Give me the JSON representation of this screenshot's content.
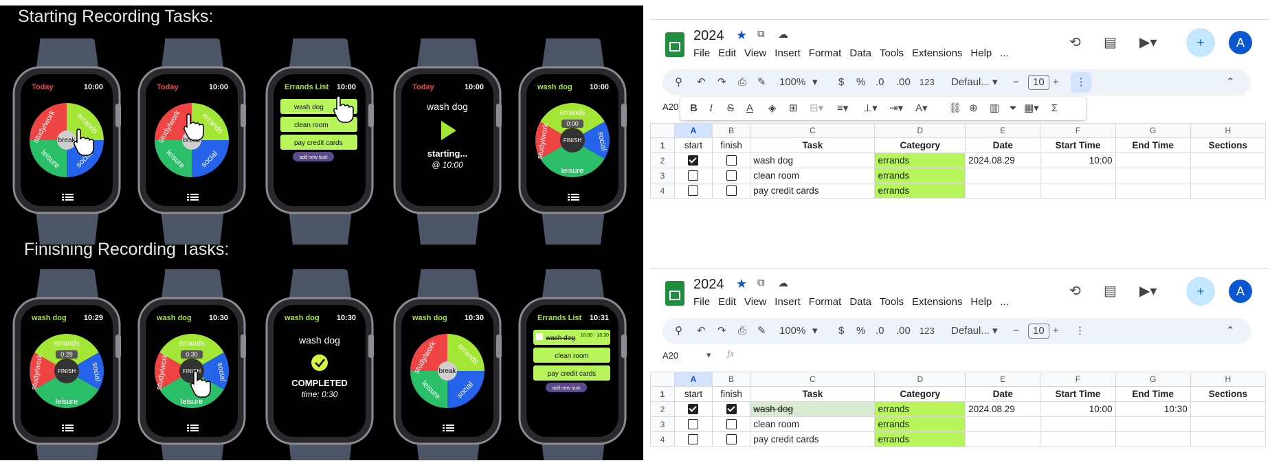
{
  "panel": {
    "start_title": "Starting Recording Tasks:",
    "finish_title": "Finishing Recording Tasks:"
  },
  "watches": {
    "w1": {
      "left": "Today",
      "time": "10:00",
      "center": "break",
      "labels": [
        "study/work",
        "errands",
        "leisure",
        "social"
      ]
    },
    "w2": {
      "left": "Today",
      "time": "10:00",
      "center": "break",
      "labels": [
        "study/work",
        "errands",
        "leisure",
        "social"
      ]
    },
    "w3": {
      "left": "Errands List",
      "time": "10:00",
      "items": [
        "wash dog",
        "clean room",
        "pay credit cards"
      ],
      "add": "add new task"
    },
    "w4": {
      "left": "Today",
      "time": "10:00",
      "task": "wash dog",
      "status": "starting...",
      "at": "@ 10:00"
    },
    "w5": {
      "left": "wash dog",
      "time": "10:00",
      "timer": "0:00",
      "center": "FINISH",
      "labels": [
        "study/work",
        "errands",
        "leisure",
        "social"
      ]
    },
    "w6": {
      "left": "wash dog",
      "time": "10:29",
      "timer": "0:29",
      "center": "FINISH",
      "labels": [
        "study/work",
        "errands",
        "leisure",
        "social"
      ]
    },
    "w7": {
      "left": "wash dog",
      "time": "10:30",
      "timer": "0:30",
      "center": "FINISH",
      "labels": [
        "study/work",
        "errands",
        "leisure",
        "social"
      ]
    },
    "w8": {
      "left": "wash dog",
      "time": "10:30",
      "task": "wash dog",
      "status": "COMPLETED",
      "duration": "time: 0:30"
    },
    "w9": {
      "left": "wash dog",
      "time": "10:30",
      "center": "break",
      "labels": [
        "study/work",
        "errands",
        "leisure",
        "social"
      ]
    },
    "w10": {
      "left": "Errands List",
      "time": "10:31",
      "items": [
        "wash dog",
        "clean room",
        "pay credit cards"
      ],
      "done_range": "10:00 - 10:30",
      "add": "add new task"
    }
  },
  "sheet1": {
    "title": "2024",
    "menu": [
      "File",
      "Edit",
      "View",
      "Insert",
      "Format",
      "Data",
      "Tools",
      "Extensions",
      "Help",
      "..."
    ],
    "zoom": "100%",
    "currency": "$",
    "percent": "%",
    "dec_less": ".0",
    "dec_more": ".00",
    "num_fmt": "123",
    "font": "Defaul...",
    "font_size": "10",
    "cell_ref": "A20",
    "avatar": "A",
    "columns": [
      "A",
      "B",
      "C",
      "D",
      "E",
      "F",
      "G",
      "H"
    ],
    "headers": [
      "start",
      "finish",
      "Task",
      "Category",
      "Date",
      "Start Time",
      "End Time",
      "Sections"
    ],
    "rows": [
      {
        "num": "2",
        "task": "wash dog",
        "category": "errands",
        "date": "2024.08.29",
        "start_time": "10:00",
        "end_time": ""
      },
      {
        "num": "3",
        "task": "clean room",
        "category": "errands",
        "date": "",
        "start_time": "",
        "end_time": ""
      },
      {
        "num": "4",
        "task": "pay credit cards",
        "category": "errands",
        "date": "",
        "start_time": "",
        "end_time": ""
      }
    ]
  },
  "sheet2": {
    "title": "2024",
    "menu": [
      "File",
      "Edit",
      "View",
      "Insert",
      "Format",
      "Data",
      "Tools",
      "Extensions",
      "Help",
      "..."
    ],
    "zoom": "100%",
    "currency": "$",
    "percent": "%",
    "dec_less": ".0",
    "dec_more": ".00",
    "num_fmt": "123",
    "font": "Defaul...",
    "font_size": "10",
    "cell_ref": "A20",
    "fx": "fx",
    "avatar": "A",
    "columns": [
      "A",
      "B",
      "C",
      "D",
      "E",
      "F",
      "G",
      "H"
    ],
    "headers": [
      "start",
      "finish",
      "Task",
      "Category",
      "Date",
      "Start Time",
      "End Time",
      "Sections"
    ],
    "rows": [
      {
        "num": "2",
        "task": "wash dog",
        "category": "errands",
        "date": "2024.08.29",
        "start_time": "10:00",
        "end_time": "10:30"
      },
      {
        "num": "3",
        "task": "clean room",
        "category": "errands",
        "date": "",
        "start_time": "",
        "end_time": ""
      },
      {
        "num": "4",
        "task": "pay credit cards",
        "category": "errands",
        "date": "",
        "start_time": "",
        "end_time": ""
      }
    ]
  },
  "colors": {
    "accent_green": "#b7f55b",
    "sheet_blue": "#0b57d0",
    "red": "#ef4444",
    "blue": "#2563eb",
    "green": "#2bbf6a",
    "lime": "#a3e635"
  }
}
